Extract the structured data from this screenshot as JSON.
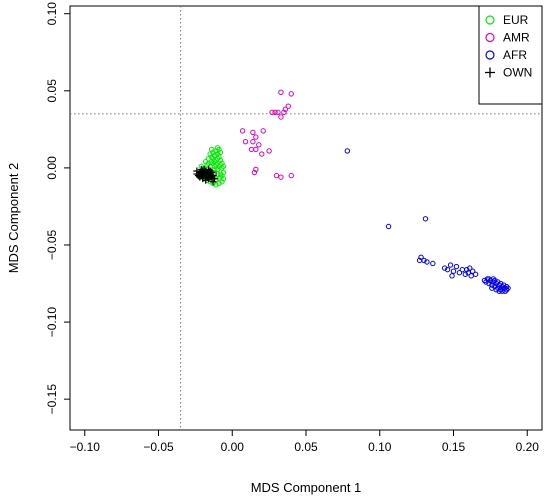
{
  "chart_data": {
    "type": "scatter",
    "xlabel": "MDS Component 1",
    "ylabel": "MDS Component 2",
    "xlim": [
      -0.11,
      0.21
    ],
    "ylim": [
      -0.17,
      0.105
    ],
    "x_ticks": [
      -0.1,
      -0.05,
      0.0,
      0.05,
      0.1,
      0.15,
      0.2
    ],
    "x_tick_labels": [
      "−0.10",
      "−0.05",
      "0.00",
      "0.05",
      "0.10",
      "0.15",
      "0.20"
    ],
    "y_ticks": [
      -0.15,
      -0.1,
      -0.05,
      0.0,
      0.05,
      0.1
    ],
    "y_tick_labels": [
      "−0.15",
      "−0.10",
      "−0.05",
      "0.00",
      "0.05",
      "0.10"
    ],
    "reference_lines": {
      "vertical_x": -0.035,
      "horizontal_y": 0.035,
      "style": "dotted",
      "color": "#7a7a7a"
    },
    "legend_position": "top-right",
    "grid": false,
    "series": [
      {
        "name": "EUR",
        "marker": "circle",
        "color": "#00ee00",
        "points": [
          [
            -0.021,
            0.001
          ],
          [
            -0.019,
            0.0
          ],
          [
            -0.017,
            0.002
          ],
          [
            -0.015,
            0.001
          ],
          [
            -0.013,
            0.003
          ],
          [
            -0.011,
            0.002
          ],
          [
            -0.009,
            0.001
          ],
          [
            -0.007,
            0.0
          ],
          [
            -0.02,
            -0.003
          ],
          [
            -0.018,
            -0.004
          ],
          [
            -0.016,
            -0.002
          ],
          [
            -0.014,
            -0.005
          ],
          [
            -0.012,
            -0.003
          ],
          [
            -0.01,
            -0.004
          ],
          [
            -0.008,
            -0.006
          ],
          [
            -0.006,
            -0.003
          ],
          [
            -0.022,
            -0.006
          ],
          [
            -0.019,
            -0.007
          ],
          [
            -0.017,
            -0.008
          ],
          [
            -0.015,
            -0.006
          ],
          [
            -0.013,
            -0.007
          ],
          [
            -0.011,
            -0.008
          ],
          [
            -0.009,
            -0.007
          ],
          [
            -0.007,
            -0.009
          ],
          [
            -0.016,
            0.006
          ],
          [
            -0.014,
            0.007
          ],
          [
            -0.012,
            0.008
          ],
          [
            -0.01,
            0.009
          ],
          [
            -0.008,
            0.01
          ],
          [
            -0.011,
            0.011
          ],
          [
            -0.009,
            0.012
          ],
          [
            -0.013,
            0.01
          ],
          [
            -0.015,
            0.009
          ],
          [
            -0.01,
            0.006
          ],
          [
            -0.008,
            0.005
          ],
          [
            -0.012,
            0.004
          ],
          [
            -0.014,
            0.004
          ],
          [
            -0.016,
            0.003
          ],
          [
            -0.018,
            0.004
          ],
          [
            -0.02,
            -0.001
          ],
          [
            -0.008,
            -0.004
          ],
          [
            -0.006,
            -0.007
          ],
          [
            -0.01,
            -0.001
          ],
          [
            -0.012,
            -0.001
          ],
          [
            -0.007,
            0.003
          ],
          [
            -0.009,
            0.007
          ],
          [
            -0.011,
            0.005
          ],
          [
            -0.013,
            0.006
          ],
          [
            -0.017,
            -0.001
          ],
          [
            -0.019,
            -0.005
          ],
          [
            -0.021,
            -0.004
          ],
          [
            -0.015,
            -0.009
          ],
          [
            -0.009,
            -0.01
          ],
          [
            -0.013,
            -0.01
          ],
          [
            -0.011,
            -0.011
          ],
          [
            -0.007,
            -0.005
          ],
          [
            -0.014,
            0.012
          ],
          [
            -0.01,
            0.013
          ],
          [
            -0.012,
            0.001
          ],
          [
            -0.016,
            -0.003
          ],
          [
            -0.018,
            -0.002
          ],
          [
            -0.008,
            0.002
          ],
          [
            -0.006,
            0.001
          ],
          [
            -0.01,
            0.003
          ]
        ]
      },
      {
        "name": "AMR",
        "marker": "circle",
        "color": "#dd00bb",
        "points": [
          [
            0.033,
            0.049
          ],
          [
            0.04,
            0.048
          ],
          [
            0.038,
            0.04
          ],
          [
            0.036,
            0.038
          ],
          [
            0.035,
            0.036
          ],
          [
            0.031,
            0.036
          ],
          [
            0.029,
            0.036
          ],
          [
            0.027,
            0.036
          ],
          [
            0.033,
            0.033
          ],
          [
            0.007,
            0.024
          ],
          [
            0.014,
            0.023
          ],
          [
            0.021,
            0.024
          ],
          [
            0.009,
            0.017
          ],
          [
            0.016,
            0.02
          ],
          [
            0.014,
            0.017
          ],
          [
            0.018,
            0.015
          ],
          [
            0.016,
            0.012
          ],
          [
            0.025,
            0.011
          ],
          [
            0.02,
            0.009
          ],
          [
            0.013,
            0.012
          ],
          [
            0.016,
            -0.001
          ],
          [
            0.015,
            -0.003
          ],
          [
            0.033,
            -0.006
          ],
          [
            0.04,
            -0.005
          ],
          [
            0.03,
            -0.005
          ],
          [
            -0.012,
            -0.004
          ]
        ]
      },
      {
        "name": "AFR",
        "marker": "circle",
        "color": "#0000ee",
        "points": [
          [
            0.078,
            0.011
          ],
          [
            0.106,
            -0.038
          ],
          [
            0.131,
            -0.033
          ],
          [
            0.128,
            -0.058
          ],
          [
            0.13,
            -0.06
          ],
          [
            0.132,
            -0.061
          ],
          [
            0.127,
            -0.06
          ],
          [
            0.136,
            -0.062
          ],
          [
            0.144,
            -0.065
          ],
          [
            0.148,
            -0.063
          ],
          [
            0.15,
            -0.067
          ],
          [
            0.146,
            -0.066
          ],
          [
            0.152,
            -0.064
          ],
          [
            0.154,
            -0.068
          ],
          [
            0.156,
            -0.066
          ],
          [
            0.158,
            -0.069
          ],
          [
            0.16,
            -0.068
          ],
          [
            0.162,
            -0.07
          ],
          [
            0.159,
            -0.066
          ],
          [
            0.163,
            -0.067
          ],
          [
            0.165,
            -0.069
          ],
          [
            0.161,
            -0.065
          ],
          [
            0.149,
            -0.07
          ],
          [
            0.171,
            -0.073
          ],
          [
            0.172,
            -0.074
          ],
          [
            0.173,
            -0.072
          ],
          [
            0.174,
            -0.075
          ],
          [
            0.175,
            -0.073
          ],
          [
            0.176,
            -0.076
          ],
          [
            0.177,
            -0.074
          ],
          [
            0.178,
            -0.077
          ],
          [
            0.179,
            -0.075
          ],
          [
            0.18,
            -0.078
          ],
          [
            0.181,
            -0.076
          ],
          [
            0.182,
            -0.079
          ],
          [
            0.183,
            -0.077
          ],
          [
            0.184,
            -0.078
          ],
          [
            0.185,
            -0.08
          ],
          [
            0.186,
            -0.077
          ],
          [
            0.176,
            -0.078
          ],
          [
            0.178,
            -0.073
          ],
          [
            0.18,
            -0.074
          ],
          [
            0.182,
            -0.075
          ],
          [
            0.184,
            -0.076
          ],
          [
            0.186,
            -0.079
          ],
          [
            0.183,
            -0.08
          ],
          [
            0.179,
            -0.079
          ],
          [
            0.181,
            -0.08
          ],
          [
            0.174,
            -0.072
          ],
          [
            0.177,
            -0.072
          ],
          [
            0.185,
            -0.078
          ],
          [
            0.187,
            -0.078
          ]
        ]
      },
      {
        "name": "OWN",
        "marker": "plus",
        "color": "#000000",
        "points": [
          [
            -0.024,
            -0.002
          ],
          [
            -0.023,
            -0.004
          ],
          [
            -0.022,
            -0.003
          ],
          [
            -0.021,
            -0.005
          ],
          [
            -0.02,
            -0.002
          ],
          [
            -0.019,
            -0.004
          ],
          [
            -0.018,
            -0.006
          ],
          [
            -0.017,
            -0.003
          ],
          [
            -0.016,
            -0.005
          ],
          [
            -0.015,
            -0.004
          ],
          [
            -0.014,
            -0.006
          ],
          [
            -0.022,
            -0.006
          ],
          [
            -0.02,
            -0.007
          ],
          [
            -0.018,
            -0.002
          ],
          [
            -0.016,
            -0.007
          ],
          [
            -0.021,
            -0.001
          ],
          [
            -0.019,
            -0.001
          ],
          [
            -0.017,
            -0.006
          ],
          [
            -0.015,
            -0.002
          ],
          [
            -0.023,
            -0.005
          ],
          [
            -0.018,
            -0.008
          ],
          [
            -0.02,
            -0.005
          ],
          [
            -0.016,
            -0.001
          ],
          [
            -0.014,
            -0.003
          ],
          [
            -0.013,
            -0.005
          ],
          [
            -0.012,
            -0.007
          ],
          [
            -0.013,
            -0.009
          ],
          [
            -0.019,
            -0.003
          ],
          [
            -0.021,
            -0.003
          ],
          [
            -0.017,
            -0.004
          ],
          [
            -0.015,
            -0.006
          ],
          [
            -0.022,
            -0.004
          ],
          [
            -0.024,
            -0.004
          ],
          [
            -0.02,
            -0.003
          ],
          [
            -0.018,
            -0.004
          ],
          [
            -0.016,
            -0.003
          ]
        ]
      }
    ]
  }
}
